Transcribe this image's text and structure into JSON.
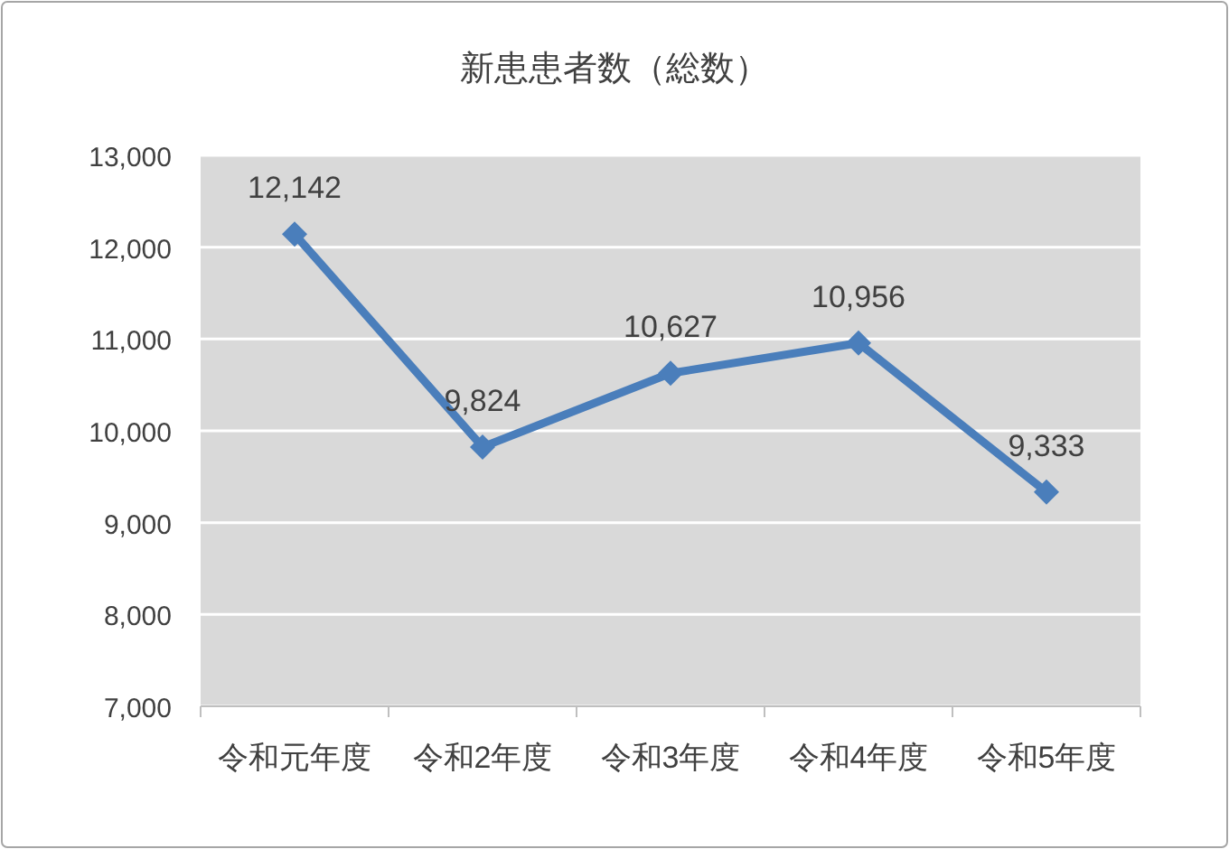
{
  "chart_data": {
    "type": "line",
    "title": "新患患者数（総数）",
    "categories": [
      "令和元年度",
      "令和2年度",
      "令和3年度",
      "令和4年度",
      "令和5年度"
    ],
    "series": [
      {
        "color": "#4a7ebb",
        "values": [
          12142,
          9824,
          10627,
          10956,
          9333
        ],
        "value_labels": [
          "12,142",
          "9,824",
          "10,627",
          "10,956",
          "9,333"
        ]
      }
    ],
    "ylim": [
      7000,
      13000
    ],
    "yticks": [
      {
        "value": 7000,
        "label": "7,000"
      },
      {
        "value": 8000,
        "label": "8,000"
      },
      {
        "value": 9000,
        "label": "9,000"
      },
      {
        "value": 10000,
        "label": "10,000"
      },
      {
        "value": 11000,
        "label": "11,000"
      },
      {
        "value": 12000,
        "label": "12,000"
      },
      {
        "value": 13000,
        "label": "13,000"
      }
    ],
    "grid": "y",
    "marker": "diamond",
    "line_style": "solid"
  }
}
